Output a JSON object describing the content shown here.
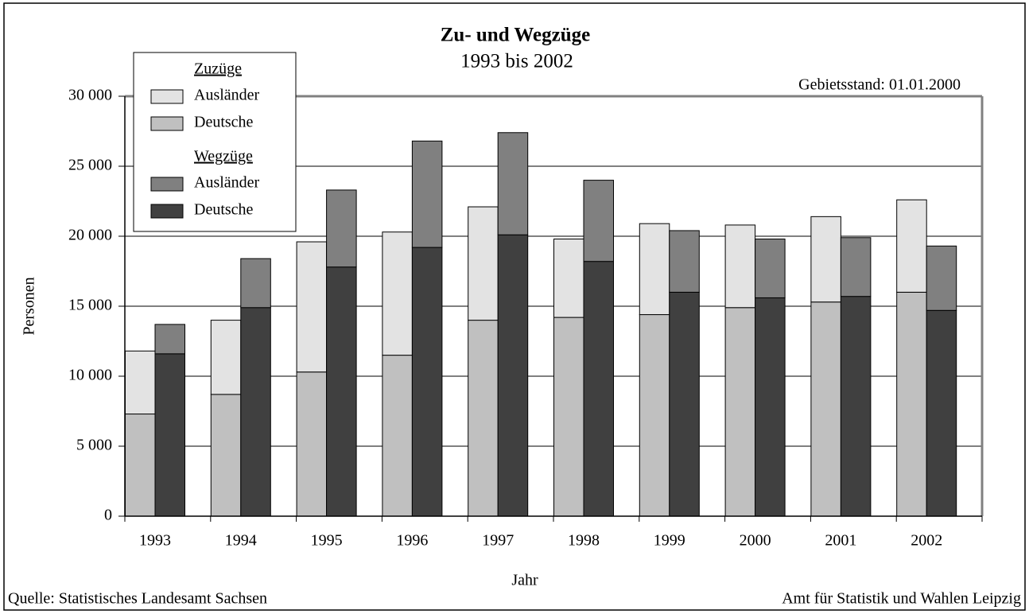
{
  "chart_data": {
    "type": "stacked_grouped_bar",
    "title": "Zu- und Wegzüge",
    "subtitle": "1993 bis 2002",
    "annotation": "Gebietsstand: 01.01.2000",
    "y_label": "Personen",
    "x_label": "Jahr",
    "source": "Quelle: Statistisches Landesamt Sachsen",
    "credit": "Amt für Statistik und Wahlen Leipzig",
    "categories": [
      "1993",
      "1994",
      "1995",
      "1996",
      "1997",
      "1998",
      "1999",
      "2000",
      "2001",
      "2002"
    ],
    "series": [
      {
        "name": "Deutsche",
        "stack": "Zuzüge",
        "color": "#c0c0c0",
        "values": [
          7300,
          8700,
          10300,
          11500,
          14000,
          14200,
          14400,
          14900,
          15300,
          16000
        ]
      },
      {
        "name": "Ausländer",
        "stack": "Zuzüge",
        "color": "#e3e3e3",
        "values": [
          4500,
          5300,
          9300,
          8800,
          8100,
          5600,
          6500,
          5900,
          6100,
          6600
        ]
      },
      {
        "name": "Deutsche",
        "stack": "Wegzüge",
        "color": "#404040",
        "values": [
          11600,
          14900,
          17800,
          19200,
          20100,
          18200,
          16000,
          15600,
          15700,
          14700
        ]
      },
      {
        "name": "Ausländer",
        "stack": "Wegzüge",
        "color": "#808080",
        "values": [
          2100,
          3500,
          5500,
          7600,
          7300,
          5800,
          4400,
          4200,
          4200,
          4600
        ]
      }
    ],
    "ylim": [
      0,
      30000
    ],
    "yticks": [
      0,
      {
        "value": 5000,
        "label": "5 000"
      },
      {
        "value": 10000,
        "label": "10 000"
      },
      {
        "value": 15000,
        "label": "15 000"
      },
      {
        "value": 20000,
        "label": "20 000"
      },
      {
        "value": 25000,
        "label": "25 000"
      },
      {
        "value": 30000,
        "label": "30 000"
      }
    ],
    "grid": true,
    "legend": "top-left"
  }
}
